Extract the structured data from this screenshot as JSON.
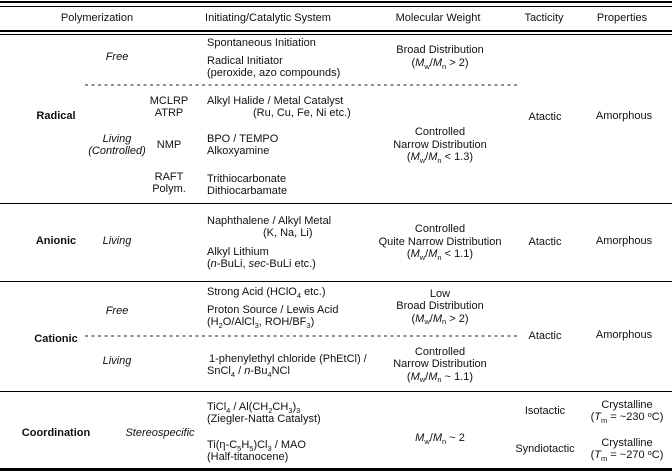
{
  "header": {
    "polymerization": "Polymerization",
    "initiating": "Initiating/Catalytic System",
    "molecular_weight": "Molecular Weight",
    "tacticity": "Tacticity",
    "properties": "Properties"
  },
  "radical": {
    "label": "Radical",
    "free": {
      "mechanism": "Free",
      "sys1": "Spontaneous Initiation",
      "sys2_line1": "Radical Initiator",
      "sys2_line2": "(peroxide, azo compounds)",
      "mw_line1": "Broad Distribution",
      "mw_line2": [
        {
          "t": "("
        },
        {
          "t": "M",
          "s": "i"
        },
        {
          "t": "w",
          "s": "sub"
        },
        {
          "t": "/"
        },
        {
          "t": "M",
          "s": "i"
        },
        {
          "t": "n",
          "s": "sub"
        },
        {
          "t": " > 2)"
        }
      ]
    },
    "living": {
      "mechanism_line1": "Living",
      "mechanism_line2": "(Controlled)",
      "abbr1_line1": "MCLRP",
      "abbr1_line2": "ATRP",
      "sys1_line1": "Alkyl Halide / Metal Catalyst",
      "sys1_line2": "(Ru, Cu, Fe, Ni etc.)",
      "abbr2": "NMP",
      "sys2_line1": "BPO / TEMPO",
      "sys2_line2": "Alkoxyamine",
      "abbr3_line1": "RAFT",
      "abbr3_line2": "Polym.",
      "sys3_line1": "Trithiocarbonate",
      "sys3_line2": "Dithiocarbamate",
      "mw_line1": "Controlled",
      "mw_line2": "Narrow Distribution",
      "mw_line3": [
        {
          "t": "("
        },
        {
          "t": "M",
          "s": "i"
        },
        {
          "t": "w",
          "s": "sub"
        },
        {
          "t": "/"
        },
        {
          "t": "M",
          "s": "i"
        },
        {
          "t": "n",
          "s": "sub"
        },
        {
          "t": " < 1.3)"
        }
      ]
    },
    "tacticity": "Atactic",
    "properties": "Amorphous"
  },
  "anionic": {
    "label": "Anionic",
    "mechanism": "Living",
    "sys1_line1": "Naphthalene / Alkyl Metal",
    "sys1_line2": "(K, Na, Li)",
    "sys2_line1": "Alkyl Lithium",
    "sys2_line2": [
      {
        "t": "("
      },
      {
        "t": "n",
        "s": "i"
      },
      {
        "t": "-BuLi, "
      },
      {
        "t": "sec",
        "s": "i"
      },
      {
        "t": "-BuLi etc.)"
      }
    ],
    "mw_line1": "Controlled",
    "mw_line2": "Quite Narrow Distribution",
    "mw_line3": [
      {
        "t": "("
      },
      {
        "t": "M",
        "s": "i"
      },
      {
        "t": "w",
        "s": "sub"
      },
      {
        "t": "/"
      },
      {
        "t": "M",
        "s": "i"
      },
      {
        "t": "n",
        "s": "sub"
      },
      {
        "t": " < 1.1)"
      }
    ],
    "tacticity": "Atactic",
    "properties": "Amorphous"
  },
  "cationic": {
    "label": "Cationic",
    "free": {
      "mechanism": "Free",
      "sys1": [
        {
          "t": "Strong Acid (HClO"
        },
        {
          "t": "4",
          "s": "sub"
        },
        {
          "t": " etc.)"
        }
      ],
      "sys2_line1": "Proton Source / Lewis Acid",
      "sys2_line2": [
        {
          "t": "(H"
        },
        {
          "t": "2",
          "s": "sub"
        },
        {
          "t": "O/AlCl"
        },
        {
          "t": "3",
          "s": "sub"
        },
        {
          "t": ", ROH/BF"
        },
        {
          "t": "3",
          "s": "sub"
        },
        {
          "t": ")"
        }
      ],
      "mw_line1": "Low",
      "mw_line2": "Broad Distribution",
      "mw_line3": [
        {
          "t": "("
        },
        {
          "t": "M",
          "s": "i"
        },
        {
          "t": "w",
          "s": "sub"
        },
        {
          "t": "/"
        },
        {
          "t": "M",
          "s": "i"
        },
        {
          "t": "n",
          "s": "sub"
        },
        {
          "t": " > 2)"
        }
      ]
    },
    "living": {
      "mechanism": "Living",
      "sys1_line1": "1-phenylethyl chloride (PhEtCl) /",
      "sys1_line2": [
        {
          "t": "SnCl"
        },
        {
          "t": "4",
          "s": "sub"
        },
        {
          "t": " / "
        },
        {
          "t": "n",
          "s": "i"
        },
        {
          "t": "-Bu"
        },
        {
          "t": "4",
          "s": "sub"
        },
        {
          "t": "NCl"
        }
      ],
      "mw_line1": "Controlled",
      "mw_line2": "Narrow Distribution",
      "mw_line3": [
        {
          "t": "("
        },
        {
          "t": "M",
          "s": "i"
        },
        {
          "t": "w",
          "s": "sub"
        },
        {
          "t": "/"
        },
        {
          "t": "M",
          "s": "i"
        },
        {
          "t": "n",
          "s": "sub"
        },
        {
          "t": " ~ 1.1)"
        }
      ]
    },
    "tacticity": "Atactic",
    "properties": "Amorphous"
  },
  "coordination": {
    "label": "Coordination",
    "mechanism": "Stereospecific",
    "sys1_line1": [
      {
        "t": "TiCl"
      },
      {
        "t": "4",
        "s": "sub"
      },
      {
        "t": " / Al(CH"
      },
      {
        "t": "2",
        "s": "sub"
      },
      {
        "t": "CH"
      },
      {
        "t": "3",
        "s": "sub"
      },
      {
        "t": ")"
      },
      {
        "t": "3",
        "s": "sub"
      }
    ],
    "sys1_line2": "(Ziegler-Natta Catalyst)",
    "sys2_line1": [
      {
        "t": "Ti(η-C"
      },
      {
        "t": "5",
        "s": "sub"
      },
      {
        "t": "H"
      },
      {
        "t": "5",
        "s": "sub"
      },
      {
        "t": ")Cl"
      },
      {
        "t": "3",
        "s": "sub"
      },
      {
        "t": " / MAO"
      }
    ],
    "sys2_line2": "(Half-titanocene)",
    "mw": [
      {
        "t": "M",
        "s": "i"
      },
      {
        "t": "w",
        "s": "sub"
      },
      {
        "t": "/"
      },
      {
        "t": "M",
        "s": "i"
      },
      {
        "t": "n",
        "s": "sub"
      },
      {
        "t": " ~ 2"
      }
    ],
    "row1": {
      "tacticity": "Isotactic",
      "prop_line1": "Crystalline",
      "prop_line2": [
        {
          "t": "("
        },
        {
          "t": "T",
          "s": "i"
        },
        {
          "t": "m",
          "s": "sub"
        },
        {
          "t": " = ~230 "
        },
        {
          "t": "o",
          "s": "sup"
        },
        {
          "t": "C)"
        }
      ]
    },
    "row2": {
      "tacticity": "Syndiotactic",
      "prop_line1": "Crystalline",
      "prop_line2": [
        {
          "t": "("
        },
        {
          "t": "T",
          "s": "i"
        },
        {
          "t": "m",
          "s": "sub"
        },
        {
          "t": " = ~270 "
        },
        {
          "t": "o",
          "s": "sup"
        },
        {
          "t": "C)"
        }
      ]
    }
  },
  "colors": {
    "rule": "#000000",
    "dashed_divider": "#8f8f8f",
    "text": "#111111",
    "background": "#ffffff"
  }
}
